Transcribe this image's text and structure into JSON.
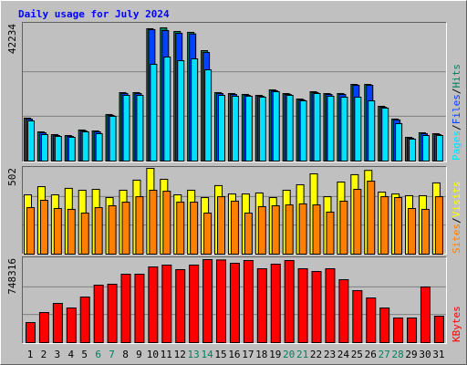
{
  "title": "Daily usage for July 2024",
  "legend_separator": "/",
  "chart_data": [
    {
      "type": "bar",
      "ylim": [
        0,
        42234
      ],
      "yticks": [
        42234
      ],
      "series": [
        {
          "name": "Hits",
          "color": "#00805C",
          "values": [
            13600,
            9260,
            8390,
            8100,
            9840,
            9550,
            14750,
            21700,
            21700,
            41950,
            42234,
            41080,
            40800,
            35000,
            21700,
            21400,
            21120,
            20830,
            22570,
            21400,
            19670,
            21990,
            21400,
            21400,
            24300,
            24300,
            17360,
            13310,
            7520,
            8970,
            8680
          ]
        },
        {
          "name": "Files",
          "color": "#0040FF",
          "values": [
            13310,
            8970,
            8100,
            7810,
            9550,
            9260,
            14460,
            21410,
            21410,
            41660,
            41370,
            40500,
            40300,
            34430,
            21410,
            21120,
            20830,
            20540,
            22280,
            21120,
            19380,
            21700,
            21120,
            21120,
            24010,
            24010,
            17070,
            13020,
            7230,
            8680,
            8390
          ]
        },
        {
          "name": "Pages",
          "color": "#00E0FF",
          "values": [
            12730,
            8390,
            7810,
            7520,
            9260,
            8680,
            14180,
            20830,
            20830,
            30670,
            32980,
            31820,
            32400,
            28930,
            20830,
            20540,
            20540,
            20250,
            21990,
            20830,
            19090,
            21410,
            20540,
            20250,
            20250,
            19090,
            16780,
            11860,
            6940,
            8100,
            8100
          ]
        }
      ]
    },
    {
      "type": "bar",
      "ylim": [
        0,
        502
      ],
      "yticks": [
        502
      ],
      "series": [
        {
          "name": "Visits",
          "color": "#FFFF00",
          "values": [
            347,
            395,
            347,
            385,
            374,
            379,
            331,
            374,
            433,
            502,
            438,
            347,
            374,
            331,
            401,
            352,
            352,
            358,
            331,
            374,
            406,
            470,
            336,
            422,
            465,
            490,
            363,
            352,
            342,
            342,
            417
          ]
        },
        {
          "name": "Sites",
          "color": "#FF8000",
          "values": [
            272,
            315,
            267,
            262,
            240,
            272,
            283,
            304,
            336,
            374,
            368,
            304,
            304,
            240,
            336,
            310,
            240,
            278,
            283,
            288,
            294,
            288,
            246,
            310,
            379,
            427,
            336,
            331,
            267,
            262,
            336
          ]
        }
      ]
    },
    {
      "type": "bar",
      "ylim": [
        0,
        748316
      ],
      "yticks": [
        748316
      ],
      "categories": [
        "1",
        "2",
        "3",
        "4",
        "5",
        "6",
        "7",
        "8",
        "9",
        "10",
        "11",
        "12",
        "13",
        "14",
        "15",
        "16",
        "17",
        "18",
        "19",
        "20",
        "21",
        "22",
        "23",
        "24",
        "25",
        "26",
        "27",
        "28",
        "29",
        "30",
        "31"
      ],
      "category_colors": [
        "#000000",
        "#000000",
        "#000000",
        "#000000",
        "#000000",
        "#00805C",
        "#00805C",
        "#000000",
        "#000000",
        "#000000",
        "#000000",
        "#000000",
        "#00805C",
        "#00805C",
        "#000000",
        "#000000",
        "#000000",
        "#000000",
        "#000000",
        "#00805C",
        "#00805C",
        "#000000",
        "#000000",
        "#000000",
        "#000000",
        "#000000",
        "#00805C",
        "#00805C",
        "#000000",
        "#000000",
        "#000000"
      ],
      "series": [
        {
          "name": "KBytes",
          "color": "#FF0000",
          "values": [
            180900,
            271360,
            353600,
            312500,
            411160,
            518070,
            526300,
            616700,
            616700,
            682500,
            699000,
            657900,
            699000,
            748316,
            745000,
            715400,
            740000,
            666100,
            707200,
            740100,
            666100,
            641400,
            666100,
            567400,
            468700,
            402900,
            312500,
            222000,
            222000,
            501600,
            238500
          ]
        }
      ]
    }
  ]
}
